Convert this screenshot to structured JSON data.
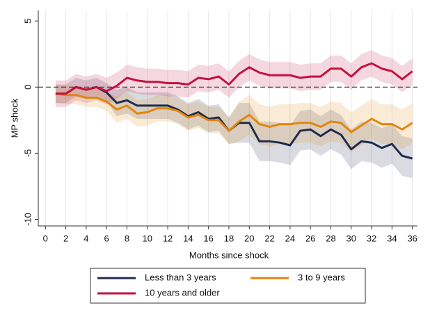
{
  "chart_data": {
    "type": "line",
    "x_label": "Months since shock",
    "y_label": "MP shock",
    "x": [
      1,
      2,
      3,
      4,
      5,
      6,
      7,
      8,
      9,
      10,
      11,
      12,
      13,
      14,
      15,
      16,
      17,
      18,
      19,
      20,
      21,
      22,
      23,
      24,
      25,
      26,
      27,
      28,
      29,
      30,
      31,
      32,
      33,
      34,
      35,
      36
    ],
    "xlim": [
      -0.7,
      36.5
    ],
    "xticks": [
      0,
      2,
      4,
      6,
      8,
      10,
      12,
      14,
      16,
      18,
      20,
      22,
      24,
      26,
      28,
      30,
      32,
      34,
      36
    ],
    "ylim": [
      -10.5,
      5.8
    ],
    "yticks": [
      -10,
      -5,
      0,
      5
    ],
    "grid": true,
    "reference_line": 0,
    "series": [
      {
        "name": "Less than 3 years",
        "color": "#1f2b4d",
        "values": [
          -0.5,
          -0.5,
          0.0,
          -0.2,
          0.0,
          -0.4,
          -1.2,
          -1.0,
          -1.4,
          -1.4,
          -1.4,
          -1.4,
          -1.7,
          -2.2,
          -1.9,
          -2.4,
          -2.3,
          -3.3,
          -2.7,
          -2.7,
          -4.1,
          -4.1,
          -4.2,
          -4.4,
          -3.3,
          -3.2,
          -3.7,
          -3.2,
          -3.6,
          -4.7,
          -4.1,
          -4.2,
          -4.6,
          -4.3,
          -5.2,
          -5.4
        ],
        "upper": [
          0.2,
          0.2,
          0.7,
          0.5,
          0.7,
          0.3,
          -0.2,
          0.0,
          -0.4,
          -0.4,
          -0.4,
          -0.4,
          -0.7,
          -1.2,
          -0.9,
          -1.4,
          -1.3,
          -2.3,
          -1.2,
          -1.2,
          -2.6,
          -2.6,
          -2.7,
          -2.9,
          -1.8,
          -1.7,
          -2.2,
          -1.7,
          -2.1,
          -3.2,
          -2.6,
          -2.7,
          -3.1,
          -2.8,
          -3.7,
          -3.9
        ],
        "lower": [
          -1.2,
          -1.2,
          -0.7,
          -0.9,
          -0.7,
          -1.1,
          -2.2,
          -2.0,
          -2.4,
          -2.4,
          -2.4,
          -2.4,
          -2.7,
          -3.2,
          -2.9,
          -3.4,
          -3.3,
          -4.3,
          -4.2,
          -4.2,
          -5.6,
          -5.6,
          -5.7,
          -5.9,
          -4.8,
          -4.7,
          -5.2,
          -4.7,
          -5.1,
          -6.2,
          -5.6,
          -5.7,
          -6.1,
          -5.8,
          -6.7,
          -6.9
        ]
      },
      {
        "name": "3 to 9 years",
        "color": "#e0860e",
        "values": [
          -0.5,
          -0.6,
          -0.6,
          -0.8,
          -0.8,
          -1.1,
          -1.7,
          -1.4,
          -2.0,
          -1.9,
          -1.6,
          -1.6,
          -1.8,
          -2.3,
          -2.1,
          -2.5,
          -2.5,
          -3.3,
          -2.6,
          -2.1,
          -2.8,
          -3.0,
          -2.8,
          -2.8,
          -2.7,
          -2.7,
          -3.0,
          -2.6,
          -2.7,
          -3.4,
          -2.9,
          -2.4,
          -2.8,
          -2.8,
          -3.2,
          -2.7
        ],
        "upper": [
          0.2,
          0.1,
          0.1,
          -0.1,
          -0.1,
          -0.4,
          -0.7,
          -0.4,
          -1.0,
          -0.9,
          -0.6,
          -0.6,
          -0.8,
          -1.3,
          -1.1,
          -1.5,
          -1.5,
          -2.3,
          -1.1,
          -0.6,
          -1.3,
          -1.5,
          -1.3,
          -1.3,
          -1.2,
          -1.2,
          -1.5,
          -1.1,
          -1.2,
          -1.9,
          -1.4,
          -0.9,
          -1.3,
          -1.3,
          -1.7,
          -1.2
        ],
        "lower": [
          -1.2,
          -1.3,
          -1.3,
          -1.5,
          -1.5,
          -1.8,
          -2.7,
          -2.4,
          -3.0,
          -2.9,
          -2.6,
          -2.6,
          -2.8,
          -3.3,
          -3.1,
          -3.5,
          -3.5,
          -4.3,
          -4.1,
          -3.6,
          -4.3,
          -4.5,
          -4.3,
          -4.3,
          -4.2,
          -4.2,
          -4.5,
          -4.1,
          -4.2,
          -4.9,
          -4.4,
          -3.9,
          -4.3,
          -4.3,
          -4.7,
          -4.2
        ]
      },
      {
        "name": "10 years and older",
        "color": "#c5103f",
        "values": [
          -0.5,
          -0.5,
          0.0,
          -0.2,
          0.0,
          -0.3,
          0.1,
          0.7,
          0.5,
          0.4,
          0.4,
          0.3,
          0.3,
          0.2,
          0.7,
          0.6,
          0.8,
          0.2,
          1.0,
          1.5,
          1.1,
          0.9,
          0.9,
          0.9,
          0.7,
          0.8,
          0.8,
          1.4,
          1.4,
          0.8,
          1.5,
          1.8,
          1.4,
          1.2,
          0.6,
          1.2
        ],
        "upper": [
          0.5,
          0.5,
          1.0,
          0.8,
          1.0,
          0.7,
          1.1,
          1.7,
          1.5,
          1.4,
          1.4,
          1.3,
          1.3,
          1.2,
          1.7,
          1.6,
          1.8,
          1.2,
          2.0,
          2.5,
          2.1,
          1.9,
          1.9,
          1.9,
          1.7,
          1.8,
          1.8,
          2.4,
          2.4,
          1.8,
          2.5,
          2.8,
          2.4,
          2.2,
          1.6,
          2.2
        ],
        "lower": [
          -1.5,
          -1.5,
          -1.0,
          -1.2,
          -1.0,
          -1.3,
          -0.9,
          -0.3,
          -0.5,
          -0.6,
          -0.6,
          -0.7,
          -0.7,
          -0.8,
          -0.3,
          -0.4,
          -0.2,
          -0.8,
          0.0,
          0.5,
          0.1,
          -0.1,
          -0.1,
          -0.1,
          -0.3,
          -0.2,
          -0.2,
          0.4,
          0.4,
          -0.2,
          0.5,
          0.8,
          0.4,
          0.2,
          -0.4,
          0.2
        ]
      }
    ]
  }
}
